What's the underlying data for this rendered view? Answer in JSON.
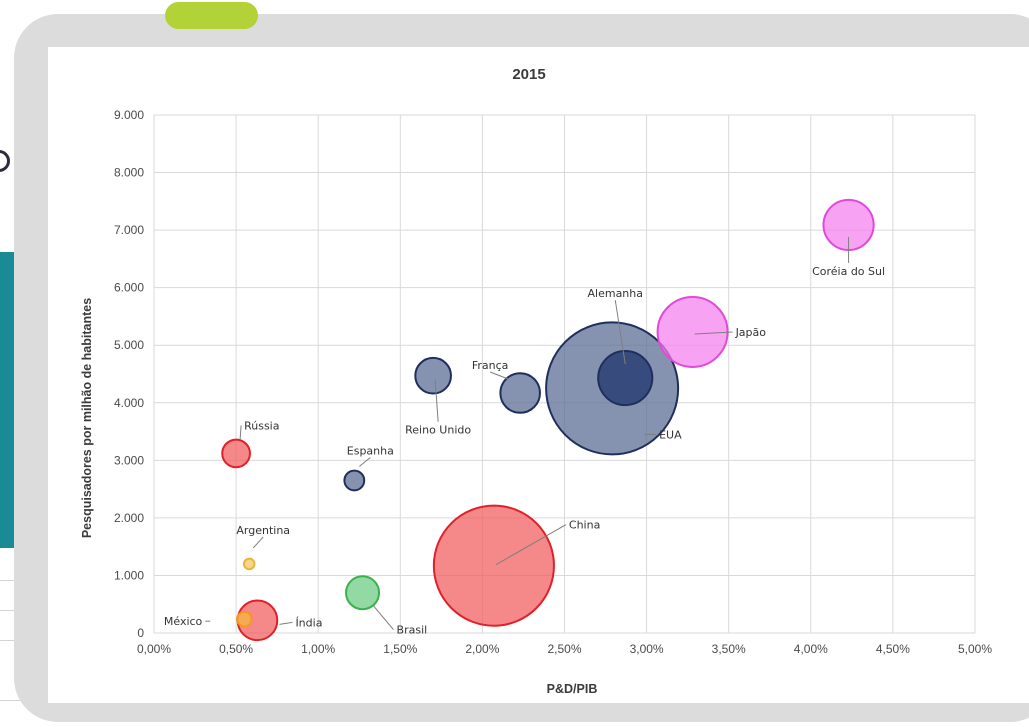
{
  "chart_data": {
    "type": "scatter",
    "title": "2015",
    "xlabel": "P&D/PIB",
    "ylabel": "Pesquisadores por milhão de habitantes",
    "xlim": [
      0,
      5
    ],
    "ylim": [
      0,
      9000
    ],
    "x_ticks": [
      "0,00%",
      "0,50%",
      "1,00%",
      "1,50%",
      "2,00%",
      "2,50%",
      "3,00%",
      "3,50%",
      "4,00%",
      "4,50%",
      "5,00%"
    ],
    "y_ticks": [
      "0",
      "1.000",
      "2.000",
      "3.000",
      "4.000",
      "5.000",
      "6.000",
      "7.000",
      "8.000",
      "9.000"
    ],
    "grid": true,
    "legend": "none",
    "colors": {
      "red": "#f15a5a",
      "red_edge": "#e0202a",
      "navy": "#5e6f96",
      "navy_edge": "#1f2f5c",
      "dark_navy": "#33487a",
      "pink": "#f57ef0",
      "pink_edge": "#e04ad8",
      "green": "#78cf8c",
      "green_edge": "#3bb04f",
      "orange": "#f5b04a",
      "orange_edge": "#f29a1a",
      "yellow": "#f5d27a",
      "yellow_edge": "#e8b43a"
    },
    "points": [
      {
        "label": "EUA",
        "x": 2.79,
        "y": 4250,
        "size": 1.0,
        "color": "navy"
      },
      {
        "label": "China",
        "x": 2.07,
        "y": 1170,
        "size": 0.91,
        "color": "red"
      },
      {
        "label": "Japão",
        "x": 3.28,
        "y": 5230,
        "size": 0.53,
        "color": "pink"
      },
      {
        "label": "Alemanha",
        "x": 2.87,
        "y": 4430,
        "size": 0.41,
        "color": "dark_navy"
      },
      {
        "label": "Coréia do Sul",
        "x": 4.23,
        "y": 7090,
        "size": 0.38,
        "color": "pink"
      },
      {
        "label": "França",
        "x": 2.23,
        "y": 4170,
        "size": 0.3,
        "color": "navy"
      },
      {
        "label": "Reino Unido",
        "x": 1.7,
        "y": 4470,
        "size": 0.27,
        "color": "navy"
      },
      {
        "label": "Índia",
        "x": 0.63,
        "y": 220,
        "size": 0.3,
        "color": "red"
      },
      {
        "label": "Brasil",
        "x": 1.27,
        "y": 700,
        "size": 0.25,
        "color": "green"
      },
      {
        "label": "Rússia",
        "x": 0.5,
        "y": 3120,
        "size": 0.21,
        "color": "red"
      },
      {
        "label": "Espanha",
        "x": 1.22,
        "y": 2650,
        "size": 0.15,
        "color": "navy"
      },
      {
        "label": "México",
        "x": 0.55,
        "y": 240,
        "size": 0.11,
        "color": "orange"
      },
      {
        "label": "Argentina",
        "x": 0.58,
        "y": 1200,
        "size": 0.08,
        "color": "yellow"
      }
    ]
  }
}
